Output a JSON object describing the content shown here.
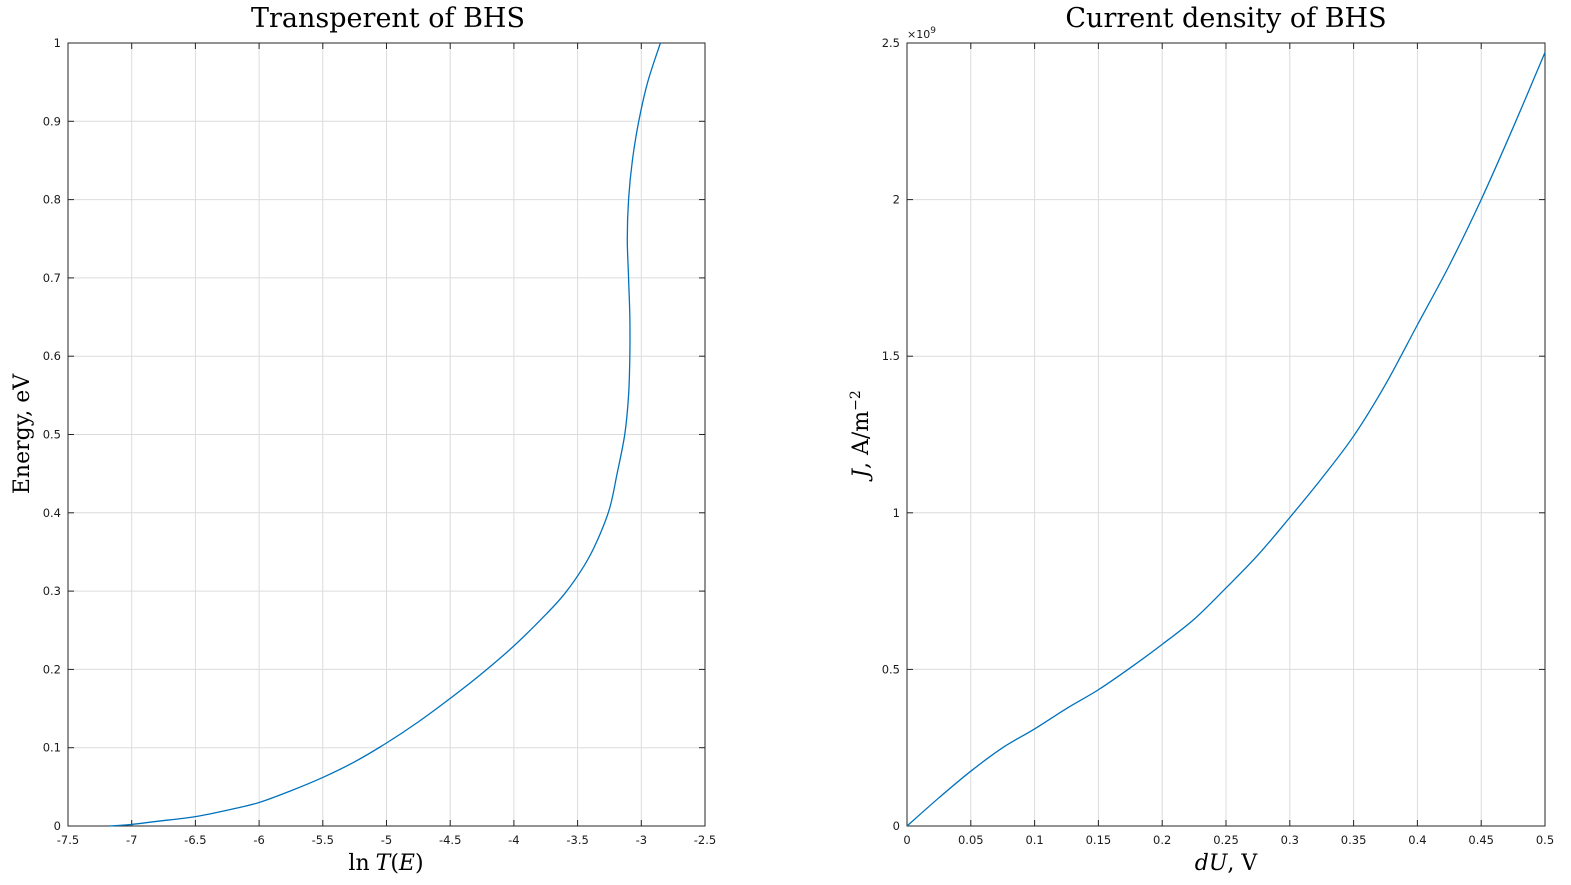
{
  "chart_data": [
    {
      "type": "line",
      "title": "Transperent of BHS",
      "xlabel": "ln T(E)",
      "ylabel": "Energy, eV",
      "xlim": [
        -7.5,
        -2.5
      ],
      "ylim": [
        0,
        1
      ],
      "xticks": [
        -7.5,
        -7,
        -6.5,
        -6,
        -5.5,
        -5,
        -4.5,
        -4,
        -3.5,
        -3,
        -2.5
      ],
      "yticks": [
        0,
        0.1,
        0.2,
        0.3,
        0.4,
        0.5,
        0.6,
        0.7,
        0.8,
        0.9,
        1
      ],
      "xtick_labels": [
        "-7.5",
        "-7",
        "-6.5",
        "-6",
        "-5.5",
        "-5",
        "-4.5",
        "-4",
        "-3.5",
        "-3",
        "-2.5"
      ],
      "ytick_labels": [
        "0",
        "0.1",
        "0.2",
        "0.3",
        "0.4",
        "0.5",
        "0.6",
        "0.7",
        "0.8",
        "0.9",
        "1"
      ],
      "grid": true,
      "series_color": "#0072bd",
      "series": [
        {
          "x": [
            -7.18,
            -7.0,
            -6.8,
            -6.5,
            -6.2,
            -6.0,
            -5.75,
            -5.5,
            -5.25,
            -5.0,
            -4.75,
            -4.5,
            -4.25,
            -4.0,
            -3.75,
            -3.6,
            -3.45,
            -3.35,
            -3.25,
            -3.19,
            -3.13,
            -3.1,
            -3.09,
            -3.09,
            -3.1,
            -3.11,
            -3.1,
            -3.07,
            -3.02,
            -2.95,
            -2.85
          ],
          "y": [
            0.0,
            0.002,
            0.006,
            0.012,
            0.022,
            0.03,
            0.045,
            0.062,
            0.082,
            0.106,
            0.133,
            0.163,
            0.195,
            0.23,
            0.27,
            0.297,
            0.332,
            0.363,
            0.405,
            0.45,
            0.5,
            0.55,
            0.6,
            0.65,
            0.7,
            0.75,
            0.8,
            0.85,
            0.9,
            0.95,
            1.0
          ]
        }
      ]
    },
    {
      "type": "line",
      "title": "Current density of BHS",
      "xlabel": "dU, V",
      "ylabel": "J, A/m−2",
      "xlim": [
        0,
        0.5
      ],
      "ylim": [
        0,
        2500000000
      ],
      "xticks": [
        0,
        0.05,
        0.1,
        0.15,
        0.2,
        0.25,
        0.3,
        0.35,
        0.4,
        0.45,
        0.5
      ],
      "yticks": [
        0,
        500000000,
        1000000000,
        1500000000,
        2000000000,
        2500000000
      ],
      "xtick_labels": [
        "0",
        "0.05",
        "0.1",
        "0.15",
        "0.2",
        "0.25",
        "0.3",
        "0.35",
        "0.4",
        "0.45",
        "0.5"
      ],
      "ytick_labels": [
        "0",
        "0.5",
        "1",
        "1.5",
        "2",
        "2.5"
      ],
      "y_exponent_label": "×10",
      "y_exponent_power": "9",
      "grid": true,
      "series_color": "#0072bd",
      "series": [
        {
          "x": [
            0,
            0.025,
            0.05,
            0.075,
            0.1,
            0.125,
            0.15,
            0.175,
            0.2,
            0.225,
            0.25,
            0.275,
            0.3,
            0.325,
            0.35,
            0.375,
            0.4,
            0.425,
            0.45,
            0.475,
            0.5
          ],
          "y": [
            0,
            90000000,
            175000000,
            250000000,
            310000000,
            375000000,
            435000000,
            505000000,
            580000000,
            660000000,
            760000000,
            865000000,
            985000000,
            1110000000,
            1245000000,
            1410000000,
            1600000000,
            1790000000,
            2000000000,
            2230000000,
            2470000000
          ]
        }
      ]
    }
  ]
}
